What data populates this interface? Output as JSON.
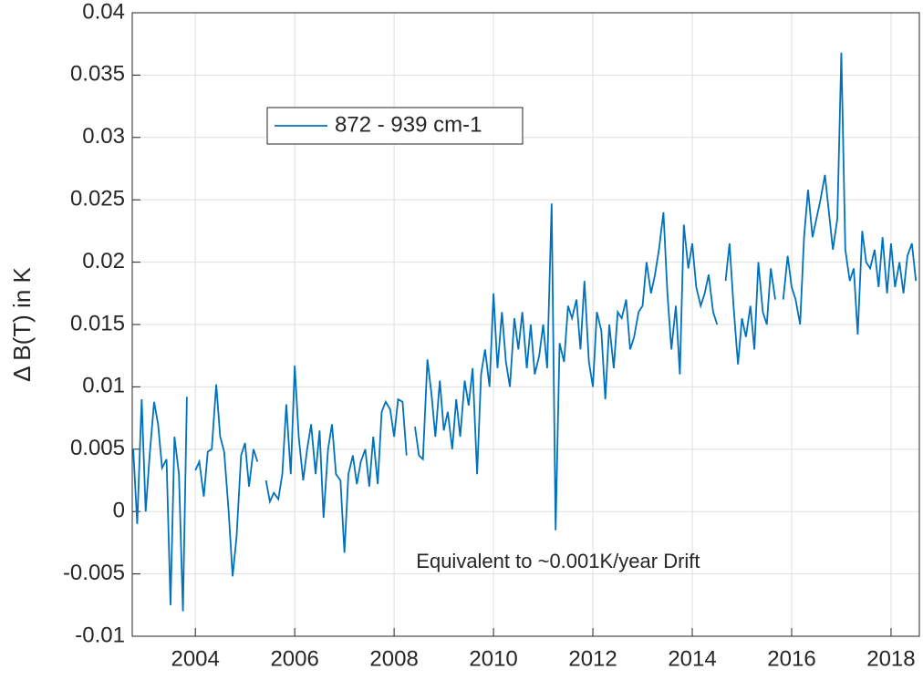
{
  "chart_data": {
    "type": "line",
    "ylabel": "Δ B(T) in K",
    "annotation": "Equivalent to ~0.001K/year Drift",
    "xlim": [
      2002.73,
      2018.57
    ],
    "xticks": [
      2004,
      2006,
      2008,
      2010,
      2012,
      2014,
      2016,
      2018
    ],
    "ylim": [
      -0.01,
      0.04
    ],
    "yticks": [
      -0.01,
      -0.005,
      0,
      0.005,
      0.01,
      0.015,
      0.02,
      0.025,
      0.03,
      0.035,
      0.04
    ],
    "grid": true,
    "legend": "upper left",
    "x": [
      2002.75,
      2002.83,
      2002.92,
      2003.0,
      2003.08,
      2003.17,
      2003.25,
      2003.33,
      2003.42,
      2003.5,
      2003.58,
      2003.67,
      2003.75,
      2003.83,
      2003.92,
      2004.0,
      2004.08,
      2004.17,
      2004.25,
      2004.33,
      2004.42,
      2004.5,
      2004.58,
      2004.67,
      2004.75,
      2004.83,
      2004.92,
      2005.0,
      2005.08,
      2005.17,
      2005.25,
      2005.33,
      2005.42,
      2005.5,
      2005.58,
      2005.67,
      2005.75,
      2005.83,
      2005.92,
      2006.0,
      2006.08,
      2006.17,
      2006.25,
      2006.33,
      2006.42,
      2006.5,
      2006.58,
      2006.67,
      2006.75,
      2006.83,
      2006.92,
      2007.0,
      2007.08,
      2007.17,
      2007.25,
      2007.33,
      2007.42,
      2007.5,
      2007.58,
      2007.67,
      2007.75,
      2007.83,
      2007.92,
      2008.0,
      2008.08,
      2008.17,
      2008.25,
      2008.33,
      2008.42,
      2008.5,
      2008.58,
      2008.67,
      2008.75,
      2008.83,
      2008.92,
      2009.0,
      2009.08,
      2009.17,
      2009.25,
      2009.33,
      2009.42,
      2009.5,
      2009.58,
      2009.67,
      2009.75,
      2009.83,
      2009.92,
      2010.0,
      2010.08,
      2010.17,
      2010.25,
      2010.33,
      2010.42,
      2010.5,
      2010.58,
      2010.67,
      2010.75,
      2010.83,
      2010.92,
      2011.0,
      2011.08,
      2011.17,
      2011.25,
      2011.33,
      2011.42,
      2011.5,
      2011.58,
      2011.67,
      2011.75,
      2011.83,
      2011.92,
      2012.0,
      2012.08,
      2012.17,
      2012.25,
      2012.33,
      2012.42,
      2012.5,
      2012.58,
      2012.67,
      2012.75,
      2012.83,
      2012.92,
      2013.0,
      2013.08,
      2013.17,
      2013.25,
      2013.33,
      2013.42,
      2013.5,
      2013.58,
      2013.67,
      2013.75,
      2013.83,
      2013.92,
      2014.0,
      2014.08,
      2014.17,
      2014.25,
      2014.33,
      2014.42,
      2014.5,
      2014.58,
      2014.67,
      2014.75,
      2014.83,
      2014.92,
      2015.0,
      2015.08,
      2015.17,
      2015.25,
      2015.33,
      2015.42,
      2015.5,
      2015.58,
      2015.67,
      2015.75,
      2015.83,
      2015.92,
      2016.0,
      2016.08,
      2016.17,
      2016.25,
      2016.33,
      2016.42,
      2016.5,
      2016.58,
      2016.67,
      2016.75,
      2016.83,
      2016.92,
      2017.0,
      2017.08,
      2017.17,
      2017.25,
      2017.33,
      2017.42,
      2017.5,
      2017.58,
      2017.67,
      2017.75,
      2017.83,
      2017.92,
      2018.0,
      2018.08,
      2018.17,
      2018.25,
      2018.33,
      2018.42,
      2018.5
    ],
    "series": [
      {
        "name": "872 - 939 cm-1",
        "color": "#0072bd",
        "values": [
          0.005,
          -0.001,
          0.009,
          0.0,
          0.0045,
          0.0088,
          0.007,
          0.0035,
          0.0042,
          -0.0075,
          0.006,
          0.003,
          -0.008,
          0.0092,
          null,
          0.0033,
          0.004,
          0.0012,
          0.0048,
          0.005,
          0.0102,
          0.006,
          0.0048,
          0.0,
          -0.0052,
          -0.002,
          0.0045,
          0.0055,
          0.002,
          0.005,
          0.004,
          null,
          0.0025,
          0.0008,
          0.0015,
          0.001,
          0.003,
          0.0086,
          0.003,
          0.0117,
          0.006,
          0.0025,
          0.005,
          0.007,
          0.003,
          0.0065,
          -0.0005,
          0.005,
          0.007,
          0.003,
          0.0025,
          -0.0033,
          0.003,
          0.0045,
          0.0022,
          0.004,
          0.005,
          0.002,
          0.006,
          0.0022,
          0.008,
          0.0088,
          0.0082,
          0.006,
          0.009,
          0.0088,
          0.0045,
          null,
          0.0068,
          0.0045,
          0.0042,
          0.0122,
          0.0095,
          0.006,
          0.0105,
          0.0065,
          0.008,
          0.005,
          0.009,
          0.006,
          0.0105,
          0.0085,
          0.0115,
          0.003,
          0.011,
          0.013,
          0.01,
          0.0175,
          0.0115,
          0.016,
          0.012,
          0.01,
          0.0155,
          0.013,
          0.016,
          0.0115,
          0.015,
          0.011,
          0.0125,
          0.015,
          0.0115,
          0.0247,
          -0.0015,
          0.0135,
          0.012,
          0.0165,
          0.0155,
          0.017,
          0.013,
          0.0185,
          0.012,
          0.01,
          0.016,
          0.0145,
          0.009,
          0.015,
          0.0115,
          0.016,
          0.0155,
          0.017,
          0.013,
          0.014,
          0.016,
          0.0165,
          0.02,
          0.0175,
          0.019,
          0.021,
          0.024,
          0.0175,
          0.013,
          0.0165,
          0.011,
          0.023,
          0.0195,
          0.0215,
          0.018,
          0.0165,
          0.0175,
          0.019,
          0.016,
          0.015,
          null,
          0.0185,
          0.0215,
          0.0165,
          0.0118,
          0.0155,
          0.014,
          0.0165,
          0.013,
          0.02,
          0.016,
          0.015,
          0.0195,
          0.017,
          null,
          0.017,
          0.0205,
          0.018,
          0.017,
          0.015,
          0.022,
          0.0258,
          0.022,
          0.0235,
          0.025,
          0.027,
          0.024,
          0.021,
          0.0235,
          0.0368,
          0.021,
          0.0185,
          0.0195,
          0.0142,
          0.0225,
          0.02,
          0.0195,
          0.021,
          0.018,
          0.022,
          0.0175,
          0.0215,
          0.018,
          0.02,
          0.0175,
          0.0205,
          0.0215,
          0.0185
        ]
      }
    ]
  }
}
